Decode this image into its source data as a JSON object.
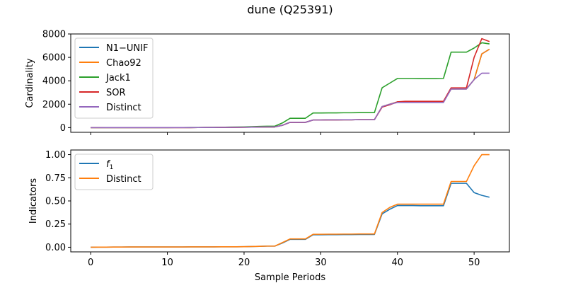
{
  "figure": {
    "title": "dune (Q25391)",
    "xlabel": "Sample Periods"
  },
  "colors": {
    "blue": "#1f77b4",
    "orange": "#ff7f0e",
    "green": "#2ca02c",
    "red": "#d62728",
    "purple": "#9467bd"
  },
  "chart_data": [
    {
      "type": "line",
      "ylabel": "Cardinality",
      "xlim": [
        -2.6,
        54.6
      ],
      "ylim": [
        -400,
        8000
      ],
      "xticks": [
        0,
        10,
        20,
        30,
        40,
        50
      ],
      "yticks": [
        0,
        2000,
        4000,
        6000,
        8000
      ],
      "ytick_labels": [
        "0",
        "2000",
        "4000",
        "6000",
        "8000"
      ],
      "grid": false,
      "legend_position": "upper-left",
      "x": [
        0,
        1,
        2,
        3,
        4,
        5,
        6,
        7,
        8,
        9,
        10,
        11,
        12,
        13,
        14,
        15,
        16,
        17,
        18,
        19,
        20,
        21,
        22,
        23,
        24,
        25,
        26,
        27,
        28,
        29,
        30,
        31,
        32,
        33,
        34,
        35,
        36,
        37,
        38,
        39,
        40,
        41,
        42,
        43,
        44,
        45,
        46,
        47,
        48,
        49,
        50,
        51,
        52
      ],
      "series": [
        {
          "name": "N1−UNIF",
          "color_key": "blue",
          "values": [
            0,
            0,
            2,
            2,
            3,
            3,
            4,
            4,
            5,
            5,
            5,
            6,
            6,
            7,
            8,
            10,
            12,
            18,
            22,
            25,
            30,
            40,
            50,
            60,
            60,
            200,
            450,
            450,
            450,
            650,
            650,
            660,
            660,
            670,
            670,
            680,
            680,
            680,
            1800,
            2000,
            2200,
            2200,
            2200,
            2200,
            2200,
            2200,
            2200,
            3300,
            3300,
            3300,
            4100,
            6300,
            6700
          ]
        },
        {
          "name": "Chao92",
          "color_key": "orange",
          "values": [
            0,
            0,
            2,
            2,
            3,
            3,
            4,
            4,
            5,
            5,
            5,
            6,
            6,
            7,
            8,
            10,
            12,
            18,
            22,
            25,
            30,
            40,
            50,
            60,
            60,
            200,
            450,
            450,
            450,
            650,
            650,
            660,
            660,
            670,
            670,
            680,
            680,
            680,
            1800,
            2000,
            2200,
            2200,
            2200,
            2200,
            2200,
            2200,
            2200,
            3300,
            3300,
            3300,
            4100,
            6300,
            6700
          ]
        },
        {
          "name": "Jack1",
          "color_key": "green",
          "values": [
            0,
            0,
            3,
            3,
            4,
            4,
            5,
            5,
            6,
            6,
            6,
            8,
            8,
            10,
            12,
            15,
            20,
            30,
            40,
            50,
            60,
            80,
            100,
            120,
            120,
            400,
            800,
            800,
            800,
            1250,
            1250,
            1260,
            1260,
            1270,
            1270,
            1280,
            1280,
            1280,
            3400,
            3800,
            4200,
            4200,
            4200,
            4190,
            4190,
            4190,
            4200,
            6450,
            6450,
            6450,
            6800,
            7250,
            7150
          ]
        },
        {
          "name": "SOR",
          "color_key": "red",
          "values": [
            0,
            0,
            2,
            2,
            3,
            3,
            4,
            4,
            5,
            5,
            5,
            6,
            6,
            7,
            8,
            10,
            12,
            18,
            22,
            25,
            30,
            40,
            50,
            60,
            60,
            200,
            450,
            450,
            450,
            650,
            650,
            660,
            660,
            670,
            670,
            680,
            680,
            680,
            1750,
            1950,
            2200,
            2250,
            2250,
            2250,
            2250,
            2250,
            2250,
            3400,
            3400,
            3400,
            6000,
            7600,
            7350
          ]
        },
        {
          "name": "Distinct",
          "color_key": "purple",
          "values": [
            0,
            0,
            2,
            2,
            3,
            3,
            4,
            4,
            5,
            5,
            5,
            6,
            6,
            7,
            8,
            10,
            12,
            18,
            22,
            25,
            30,
            40,
            50,
            60,
            60,
            200,
            450,
            450,
            450,
            650,
            650,
            660,
            660,
            670,
            670,
            680,
            680,
            680,
            1800,
            2000,
            2150,
            2150,
            2150,
            2150,
            2150,
            2150,
            2150,
            3300,
            3300,
            3300,
            4100,
            4650,
            4650
          ]
        }
      ]
    },
    {
      "type": "line",
      "ylabel": "Indicators",
      "xlim": [
        -2.6,
        54.6
      ],
      "ylim": [
        -0.05,
        1.05
      ],
      "xticks": [
        0,
        10,
        20,
        30,
        40,
        50
      ],
      "xtick_labels": [
        "0",
        "10",
        "20",
        "30",
        "40",
        "50"
      ],
      "yticks": [
        0,
        0.25,
        0.5,
        0.75,
        1.0
      ],
      "ytick_labels": [
        "0.00",
        "0.25",
        "0.50",
        "0.75",
        "1.00"
      ],
      "grid": false,
      "legend_position": "upper-left",
      "x": [
        0,
        1,
        2,
        3,
        4,
        5,
        6,
        7,
        8,
        9,
        10,
        11,
        12,
        13,
        14,
        15,
        16,
        17,
        18,
        19,
        20,
        21,
        22,
        23,
        24,
        25,
        26,
        27,
        28,
        29,
        30,
        31,
        32,
        33,
        34,
        35,
        36,
        37,
        38,
        39,
        40,
        41,
        42,
        43,
        44,
        45,
        46,
        47,
        48,
        49,
        50,
        51,
        52
      ],
      "series": [
        {
          "name": "f_1",
          "color_key": "blue",
          "values": [
            0,
            0.001,
            0.001,
            0.002,
            0.002,
            0.003,
            0.003,
            0.003,
            0.003,
            0.003,
            0.003,
            0.003,
            0.003,
            0.004,
            0.004,
            0.004,
            0.004,
            0.005,
            0.005,
            0.005,
            0.006,
            0.008,
            0.01,
            0.012,
            0.012,
            0.045,
            0.085,
            0.085,
            0.085,
            0.135,
            0.135,
            0.136,
            0.136,
            0.137,
            0.137,
            0.138,
            0.138,
            0.138,
            0.36,
            0.41,
            0.45,
            0.45,
            0.45,
            0.448,
            0.448,
            0.448,
            0.448,
            0.69,
            0.69,
            0.69,
            0.59,
            0.56,
            0.54
          ]
        },
        {
          "name": "Distinct",
          "color_key": "orange",
          "values": [
            0,
            0.001,
            0.001,
            0.002,
            0.002,
            0.003,
            0.003,
            0.003,
            0.003,
            0.003,
            0.003,
            0.003,
            0.003,
            0.004,
            0.004,
            0.004,
            0.004,
            0.005,
            0.005,
            0.005,
            0.006,
            0.008,
            0.01,
            0.012,
            0.012,
            0.05,
            0.09,
            0.09,
            0.09,
            0.14,
            0.14,
            0.141,
            0.141,
            0.142,
            0.142,
            0.143,
            0.143,
            0.143,
            0.375,
            0.43,
            0.465,
            0.465,
            0.465,
            0.465,
            0.465,
            0.465,
            0.465,
            0.71,
            0.71,
            0.71,
            0.88,
            1.0,
            1.0
          ]
        }
      ]
    }
  ]
}
